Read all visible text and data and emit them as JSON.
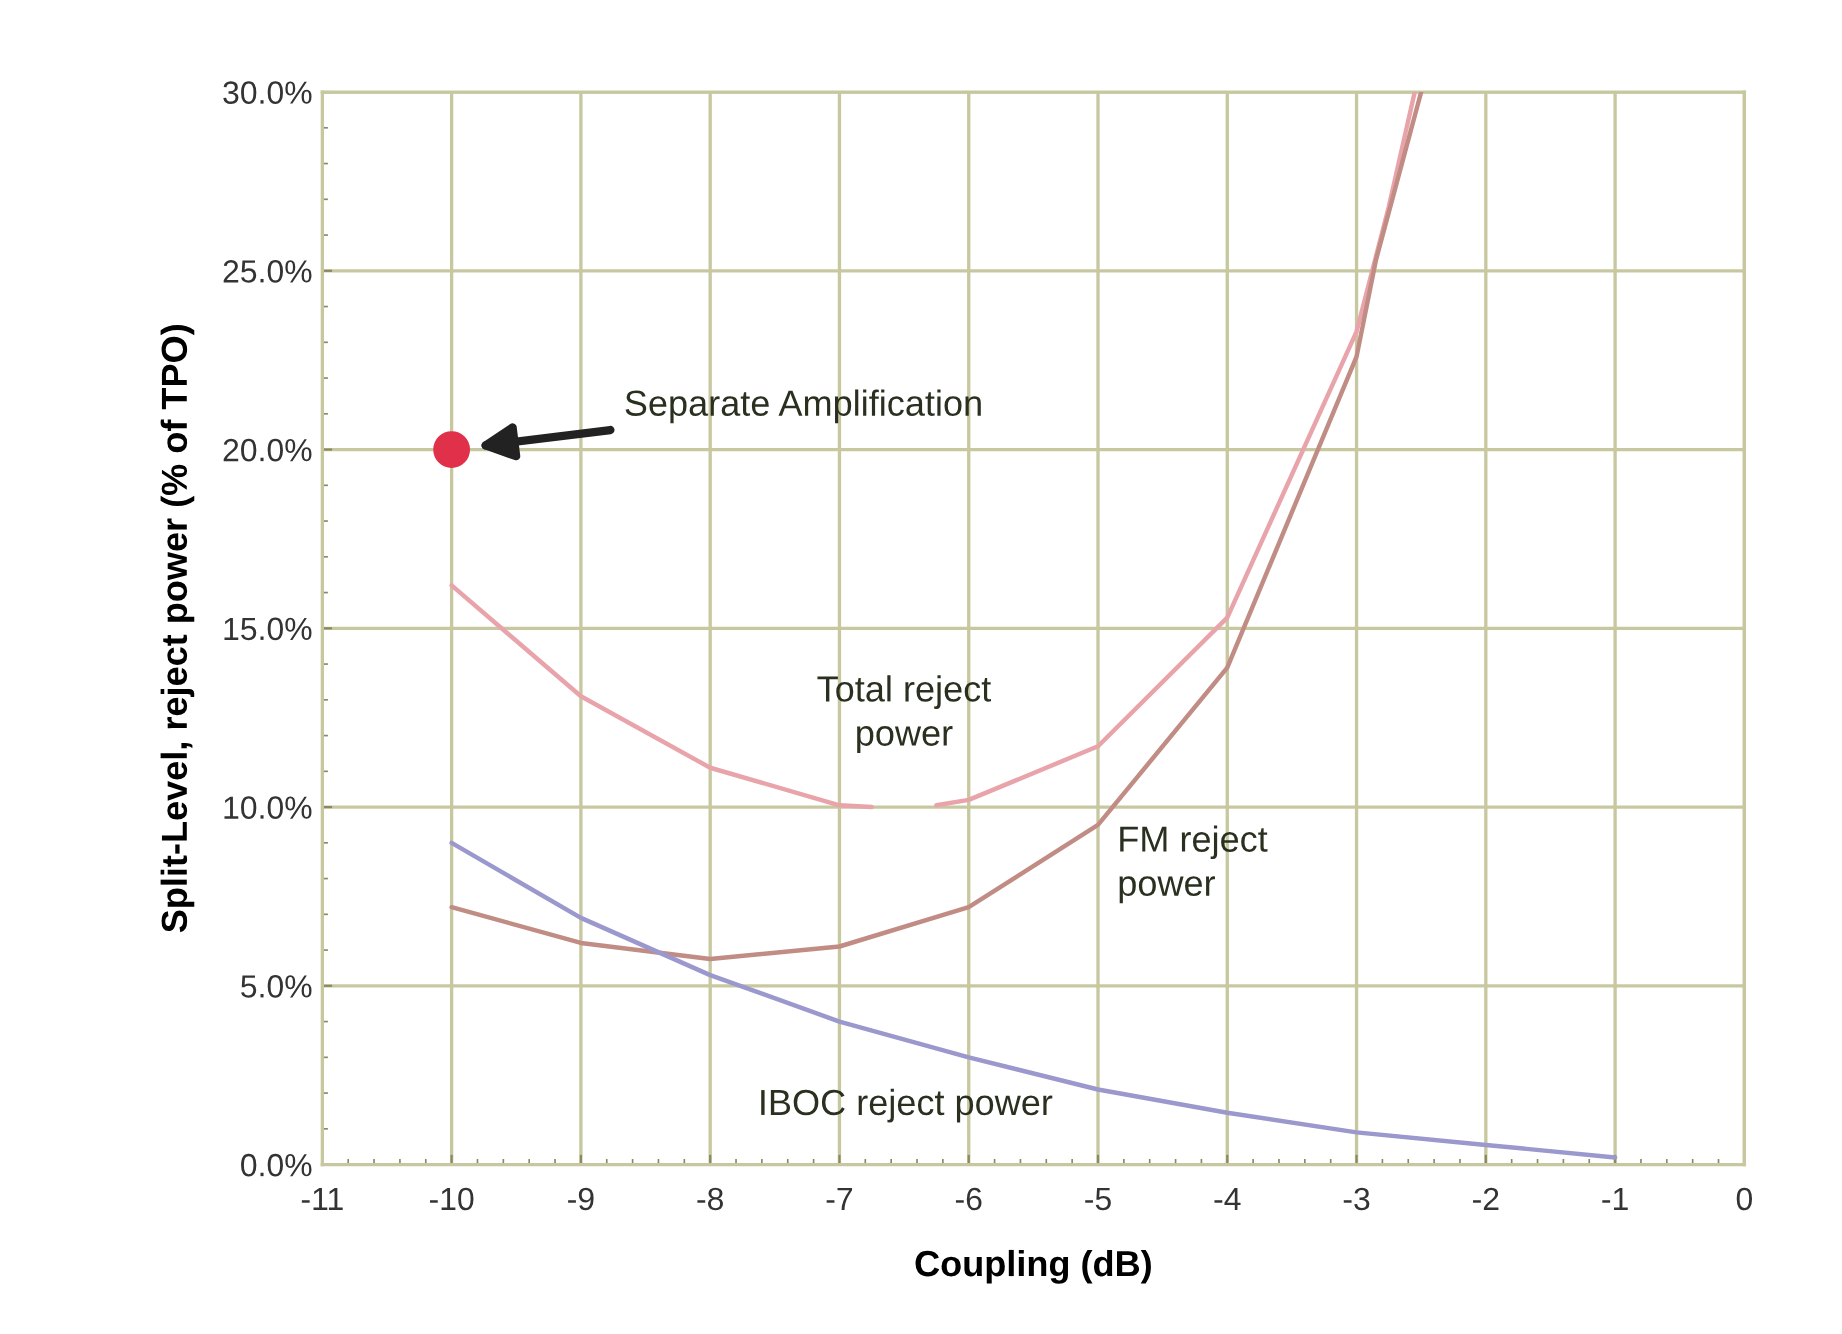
{
  "chart_data": {
    "type": "line",
    "xlabel": "Coupling (dB)",
    "ylabel": "Split-Level, reject power (% of TPO)",
    "xlim": [
      -11,
      0
    ],
    "xticks": [
      -11,
      -10,
      -9,
      -8,
      -7,
      -6,
      -5,
      -4,
      -3,
      -2,
      -1,
      0
    ],
    "ylim": [
      0,
      30
    ],
    "yticks": [
      {
        "value": 0,
        "label": "0.0%"
      },
      {
        "value": 5,
        "label": "5.0%"
      },
      {
        "value": 10,
        "label": "10.0%"
      },
      {
        "value": 15,
        "label": "15.0%"
      },
      {
        "value": 20,
        "label": "20.0%"
      },
      {
        "value": 25,
        "label": "25.0%"
      },
      {
        "value": 30,
        "label": "30.0%"
      }
    ],
    "grid": true,
    "marker": "none",
    "line_style": "solid",
    "series": [
      {
        "color": "#e8a4aa",
        "x": [
          -10,
          -9,
          -8,
          -7,
          -6.75,
          -6.5,
          -6.25,
          -6,
          -5,
          -4,
          -3,
          -2.75,
          -2.55
        ],
        "values": [
          16.2,
          13.1,
          11.1,
          10.05,
          10.0,
          null,
          10.05,
          10.2,
          11.7,
          15.3,
          23.3,
          26.8,
          30
        ]
      },
      {
        "color": "#c08c84",
        "x": [
          -10,
          -9,
          -8,
          -7,
          -6,
          -5,
          -4,
          -3,
          -2.85,
          -2.5
        ],
        "values": [
          7.2,
          6.2,
          5.75,
          6.1,
          7.2,
          9.5,
          13.9,
          22.6,
          25.3,
          30
        ]
      },
      {
        "color": "#9a98cc",
        "x": [
          -10,
          -9,
          -8,
          -7,
          -6,
          -5,
          -4,
          -3,
          -2,
          -1
        ],
        "values": [
          9.0,
          6.9,
          5.3,
          4.0,
          3.0,
          2.1,
          1.45,
          0.9,
          0.55,
          0.2
        ]
      },
      {
        "type": "scatter",
        "marker": "circle",
        "color": "#e0304a",
        "x": [
          -10
        ],
        "values": [
          20
        ]
      }
    ],
    "annotations": [
      "Separate Amplification",
      "Total reject\npower",
      "FM reject\npower",
      "IBOC reject power"
    ]
  }
}
